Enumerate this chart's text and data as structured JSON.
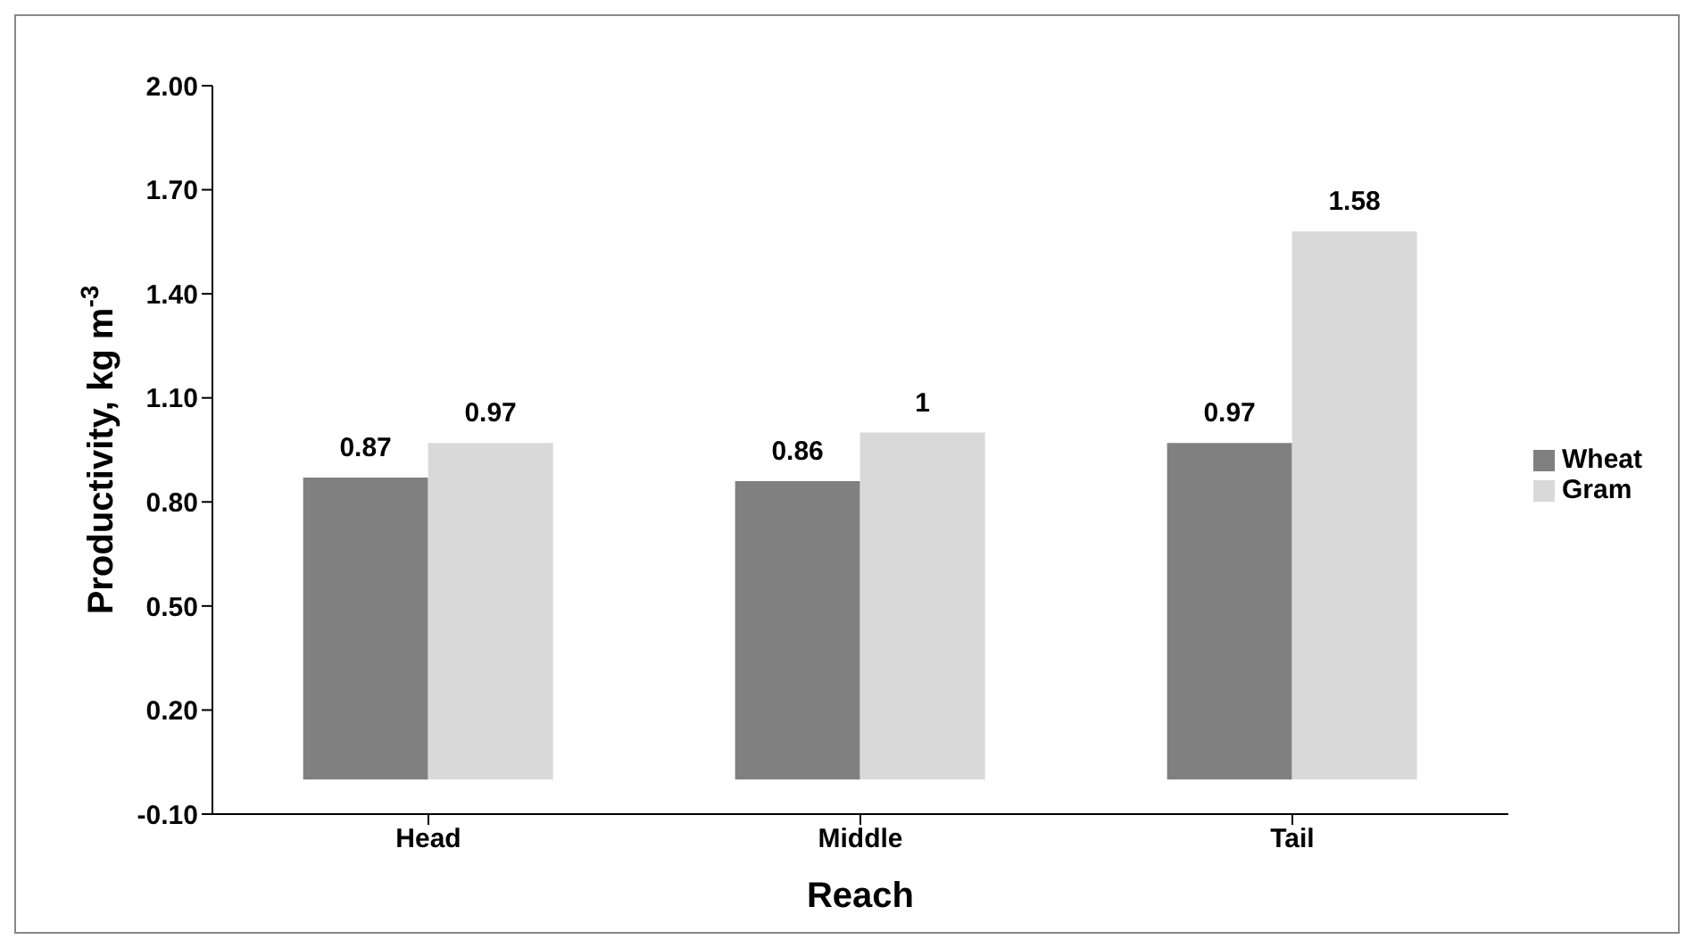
{
  "chart_data": {
    "type": "bar",
    "xlabel": "Reach",
    "ylabel": "Productivity, kg m$^{-3}$",
    "categories": [
      "Head",
      "Middle",
      "Tail"
    ],
    "series": [
      {
        "name": "Wheat",
        "color": "#808080",
        "values": [
          0.87,
          0.86,
          0.97
        ]
      },
      {
        "name": "Gram",
        "color": "#d9d9d9",
        "values": [
          0.97,
          1,
          1.58
        ]
      }
    ],
    "ylim": [
      -0.1,
      2.0
    ],
    "yticks": [
      {
        "value": -0.1,
        "label": "-0.10"
      },
      {
        "value": 0.2,
        "label": "0.20"
      },
      {
        "value": 0.5,
        "label": "0.50"
      },
      {
        "value": 0.8,
        "label": "0.80"
      },
      {
        "value": 1.1,
        "label": "1.10"
      },
      {
        "value": 1.4,
        "label": "1.40"
      },
      {
        "value": 1.7,
        "label": "1.70"
      },
      {
        "value": 2.0,
        "label": "2.00"
      }
    ],
    "data_labels": true,
    "grid": false,
    "legend": "right"
  }
}
